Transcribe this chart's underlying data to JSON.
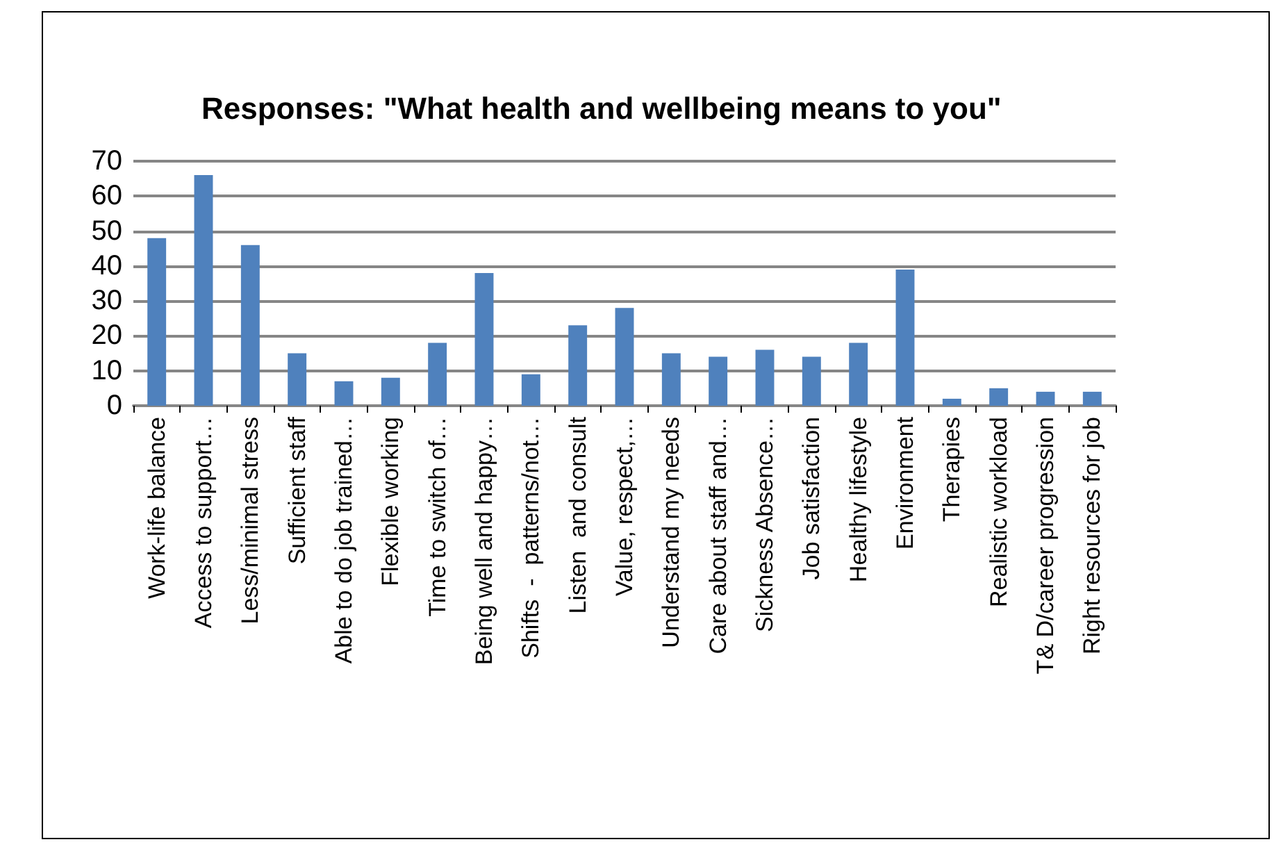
{
  "chart_data": {
    "type": "bar",
    "title": "Responses: \"What health and wellbeing means to you\"",
    "categories": [
      "Work-life balance",
      "Access to support…",
      "Less/minimal stress",
      "Sufficient staff",
      "Able to do job trained…",
      "Flexible working",
      "Time to switch of…",
      "Being well and happy…",
      "Shifts  -  patterns/not…",
      "Listen  and consult",
      "Value, respect,…",
      "Understand my needs",
      "Care about staff and…",
      "Sickness Absence…",
      "Job satisfaction",
      "Healthy lifestyle",
      "Environment",
      "Therapies",
      "Realistic workload",
      "T& D/career progression",
      "Right resources for job"
    ],
    "values": [
      48,
      66,
      46,
      15,
      7,
      8,
      18,
      38,
      9,
      23,
      28,
      15,
      14,
      16,
      14,
      18,
      39,
      2,
      5,
      4,
      4
    ],
    "color": "#4f81bd",
    "ylim": [
      0,
      70
    ],
    "yticks": [
      0,
      10,
      20,
      30,
      40,
      50,
      60,
      70
    ],
    "grid": "y"
  }
}
